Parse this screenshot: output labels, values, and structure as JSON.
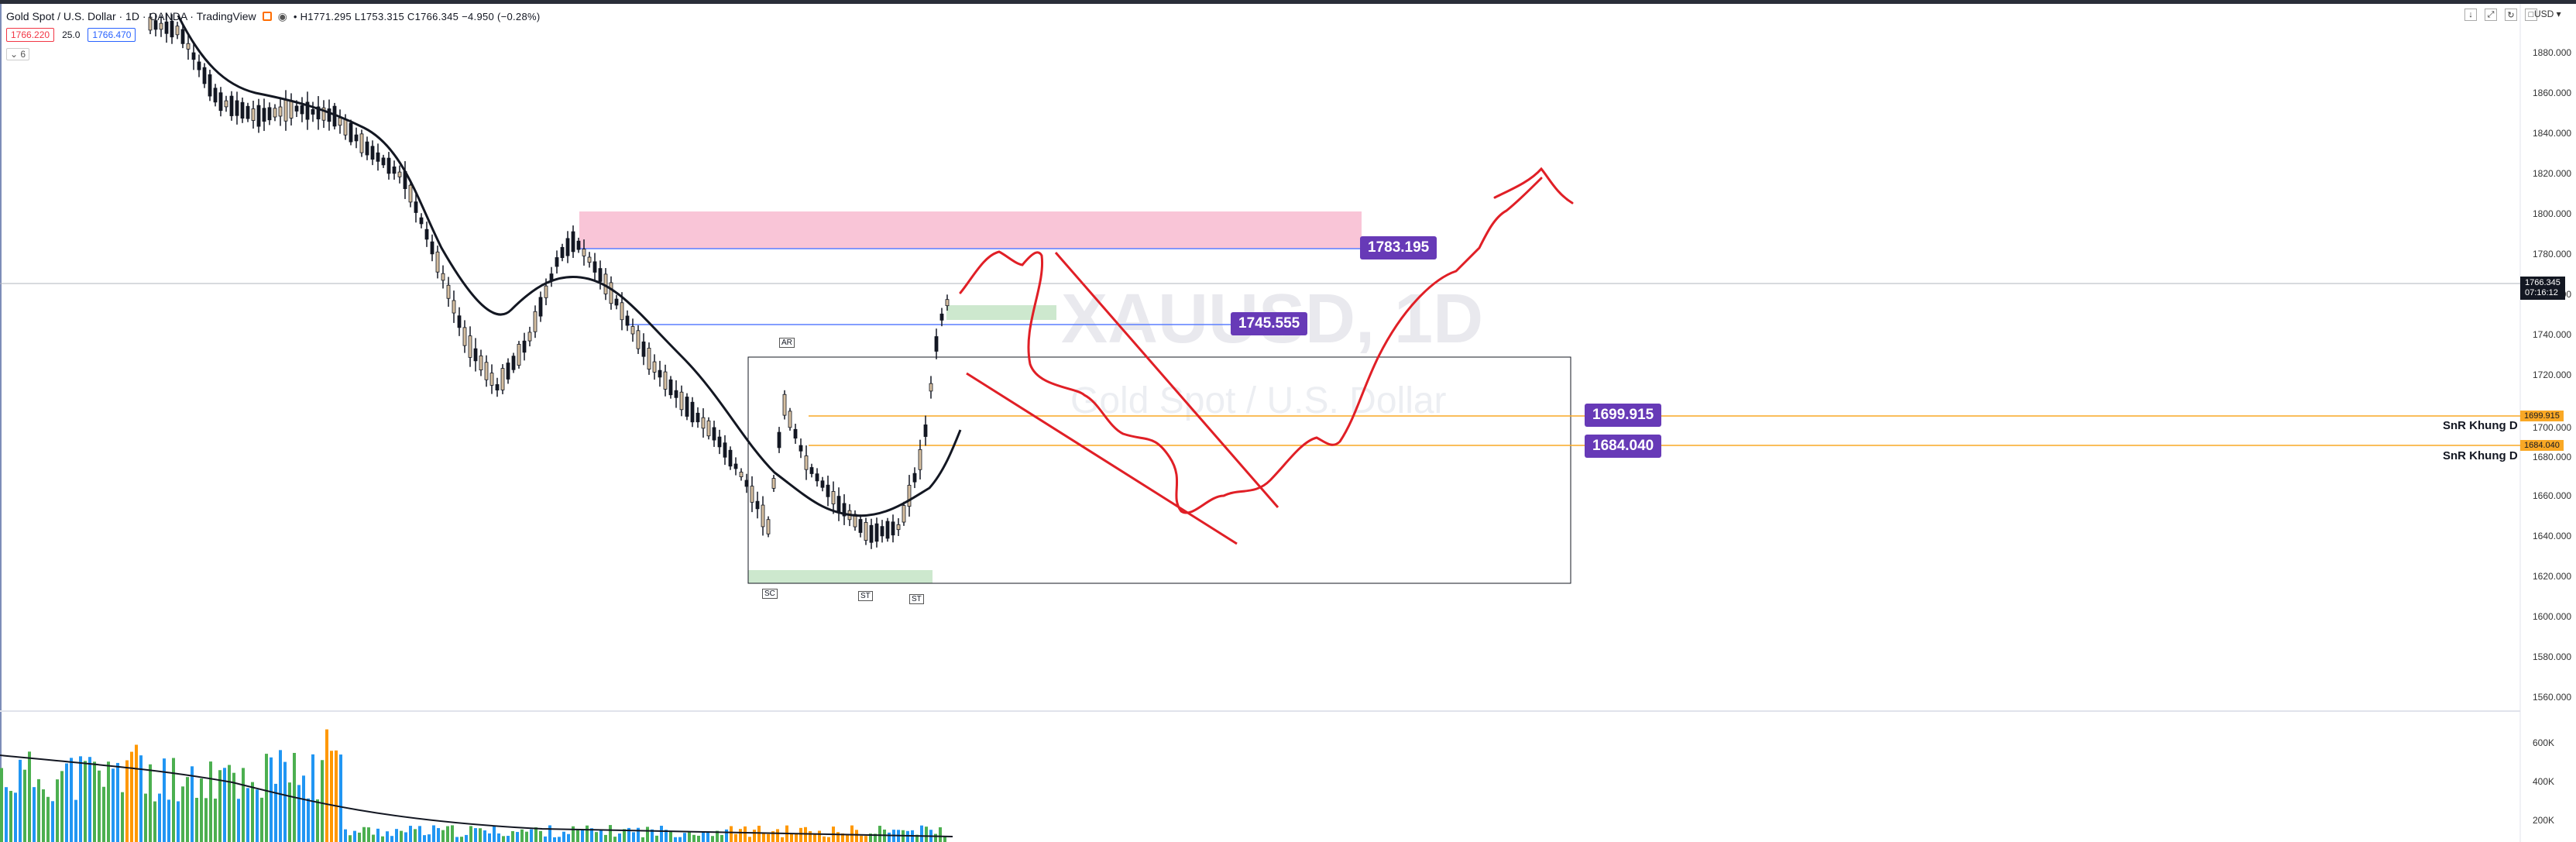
{
  "legend": {
    "symbol": "Gold Spot / U.S. Dollar · 1D · OANDA · TradingView",
    "ohlc": "• H1771.295 L1753.315 C1766.345 −4.950 (−0.28%)",
    "open_value": "1771.295",
    "sell_price": "1766.220",
    "spread": "25.0",
    "buy_price": "1766.470",
    "indicators_count": "6"
  },
  "currency": "USD",
  "watermark": {
    "symbol": "XAUUSD, 1D",
    "name": "Gold Spot / U.S. Dollar"
  },
  "price_boxes": {
    "resistance": "1783.195",
    "mid": "1745.555",
    "snr_upper": "1699.915",
    "snr_lower": "1684.040"
  },
  "snr_labels": {
    "upper": "SnR Khung D",
    "lower": "SnR Khung D"
  },
  "axis_tags": {
    "upper": "1699.915",
    "lower": "1684.040",
    "current_price": "1766.345",
    "countdown": "07:16:12"
  },
  "wyckoff_labels": {
    "ar": "AR",
    "sc": "SC",
    "st1": "ST",
    "st2": "ST"
  },
  "price_axis": [
    "1880.000",
    "1860.000",
    "1840.000",
    "1820.000",
    "1800.000",
    "1780.000",
    "1760.000",
    "1740.000",
    "1720.000",
    "1700.000",
    "1680.000",
    "1660.000",
    "1640.000",
    "1620.000",
    "1600.000",
    "1580.000",
    "1560.000"
  ],
  "volume_axis": [
    "600K",
    "400K",
    "200K"
  ],
  "colors": {
    "up": "#26a69a",
    "down": "#131722",
    "drawing": "#e01f26",
    "label_bg": "#673ab7",
    "snr_line": "#f9a825",
    "resistance_zone": "#f8bbd0",
    "support_zone": "#c8e6c9"
  }
}
